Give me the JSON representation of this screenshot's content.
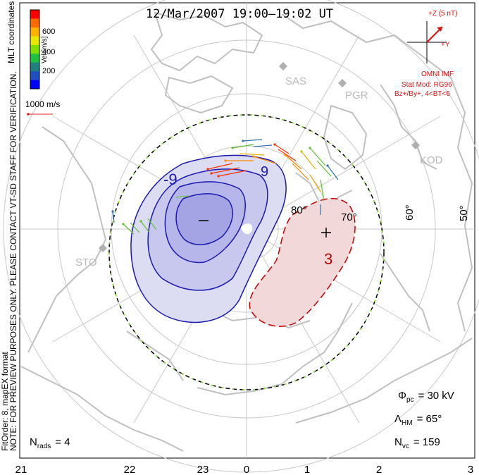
{
  "title": "12/Mar/2007 19:00–19:02 UT",
  "side_note_1": "NOTE: FOR PREVIEW PURPOSES ONLY. PLEASE CONTACT VT-SD STAFF FOR VERIFICATION.",
  "side_note_2": "FitOrder: 8, mapEX format",
  "mlt_label": "MLT coordinates",
  "colorbar": {
    "label": "Vel [m/s]",
    "ticks": [
      "600",
      "400",
      "200"
    ],
    "colors": [
      "#ff0000",
      "#ff6a00",
      "#ffb000",
      "#e8e800",
      "#80e000",
      "#20c040",
      "#208080",
      "#2050c0",
      "#0000ff"
    ]
  },
  "ref_vector_label": "1000 m/s",
  "imf": {
    "z_label": "+Z (5 nT)",
    "y_label": "+Y",
    "source": "OMNI IMF",
    "stat_mod": "Stat Mod: RG96",
    "condition": "Bz+/By+, 4<BT<6"
  },
  "stations": [
    "SAS",
    "PGR",
    "KOD",
    "STO"
  ],
  "latitude_labels": [
    "80°",
    "70°",
    "60°",
    "50°"
  ],
  "contour_labels": {
    "neg": "-9",
    "neg2": "9",
    "pos": "3"
  },
  "mlt_ticks": [
    "21",
    "22",
    "23",
    "0",
    "1",
    "2",
    "3"
  ],
  "stats": {
    "phi_label": "Φ",
    "phi_sub": "pc",
    "phi_value": "= 30 kV",
    "lam_label": "Λ",
    "lam_sub": "HM",
    "lam_value": "= 65°",
    "nvc_label": "N",
    "nvc_sub": "vc",
    "nvc_value": "= 159",
    "nrads_label": "N",
    "nrads_sub": "rads",
    "nrads_value": "= 4"
  }
}
